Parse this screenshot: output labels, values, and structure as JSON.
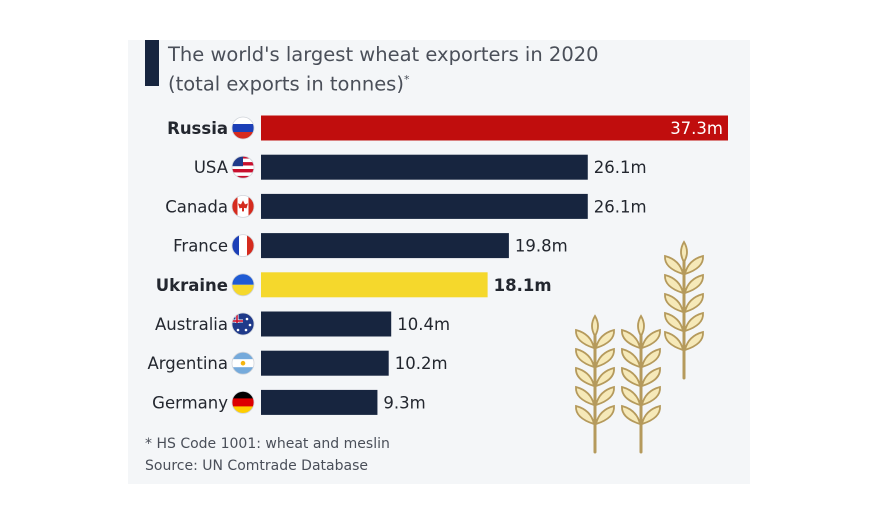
{
  "title": "The world's largest wheat exporters in 2020",
  "subtitle": "(total exports in tonnes)",
  "subtitle_mark": "*",
  "footnote": "* HS Code 1001: wheat and meslin",
  "source": "Source: UN Comtrade Database",
  "colors": {
    "default_bar": "#17253f",
    "russia_bar": "#c00d0d",
    "ukraine_bar": "#f5d82c",
    "card_bg": "#f4f6f8",
    "wheat_fill": "#f6e9b8",
    "wheat_stroke": "#b59a5c"
  },
  "chart_data": {
    "type": "bar",
    "orientation": "horizontal",
    "categories": [
      "Russia",
      "USA",
      "Canada",
      "France",
      "Ukraine",
      "Australia",
      "Argentina",
      "Germany"
    ],
    "values": [
      37.3,
      26.1,
      26.1,
      19.8,
      18.1,
      10.4,
      10.2,
      9.3
    ],
    "value_labels": [
      "37.3m",
      "26.1m",
      "26.1m",
      "19.8m",
      "18.1m",
      "10.4m",
      "10.2m",
      "9.3m"
    ],
    "unit": "million tonnes",
    "highlight": {
      "Russia": "#c00d0d",
      "Ukraine": "#f5d82c"
    },
    "flag_icons": [
      "russia-flag-icon",
      "usa-flag-icon",
      "canada-flag-icon",
      "france-flag-icon",
      "ukraine-flag-icon",
      "australia-flag-icon",
      "argentina-flag-icon",
      "germany-flag-icon"
    ],
    "xlim": [
      0,
      37.3
    ],
    "grid": false,
    "legend": "none"
  },
  "decoration": {
    "icon": "wheat-stalks-icon"
  }
}
